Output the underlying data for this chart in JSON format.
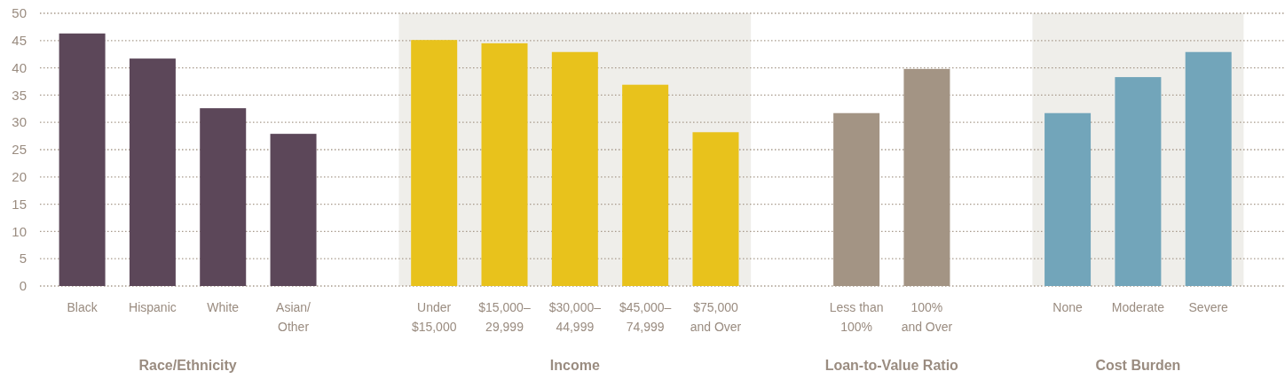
{
  "chart_data": {
    "type": "bar",
    "categories": [
      "Black",
      "Hispanic",
      "White",
      "Asian/\nOther",
      "Under\n$15,000",
      "$15,000–\n29,999",
      "$30,000–\n44,999",
      "$45,000–\n74,999",
      "$75,000\nand Over",
      "Less than\n100%",
      "100%\nand Over",
      "None",
      "Moderate",
      "Severe"
    ],
    "series": [
      {
        "color": "#5c4759",
        "values": [
          46.3,
          41.7,
          32.6,
          27.9,
          null,
          null,
          null,
          null,
          null,
          null,
          null,
          null,
          null,
          null
        ]
      },
      {
        "color": "#e8c21c",
        "values": [
          null,
          null,
          null,
          null,
          45.1,
          44.5,
          42.9,
          36.9,
          28.2,
          null,
          null,
          null,
          null,
          null
        ]
      },
      {
        "color": "#a39484",
        "values": [
          null,
          null,
          null,
          null,
          null,
          null,
          null,
          null,
          null,
          31.7,
          39.8,
          null,
          null,
          null
        ]
      },
      {
        "color": "#72a5ba",
        "values": [
          null,
          null,
          null,
          null,
          null,
          null,
          null,
          null,
          null,
          null,
          null,
          31.7,
          38.3,
          42.9
        ]
      }
    ],
    "annotations": [
      "Race/Ethnicity",
      "Income",
      "Loan-to-Value Ratio",
      "Cost Burden"
    ],
    "bands": [
      {
        "axis": "x",
        "from": "Under\n$15,000",
        "to": "$75,000\nand Over",
        "color": "#efeeea"
      },
      {
        "axis": "x",
        "from": "None",
        "to": "Severe",
        "color": "#efeeea"
      }
    ],
    "ylim": [
      0,
      50
    ],
    "yticks": [
      0,
      5,
      10,
      15,
      20,
      25,
      30,
      35,
      40,
      45,
      50
    ],
    "grid": "y"
  }
}
